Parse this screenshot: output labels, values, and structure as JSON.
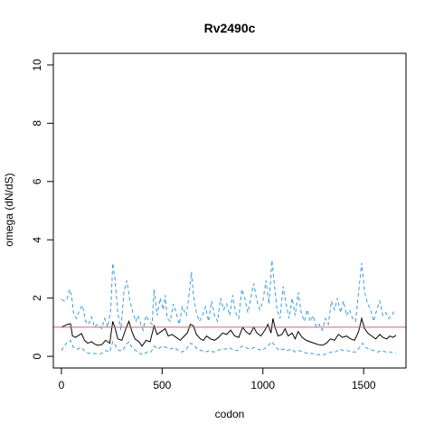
{
  "chart_data": {
    "type": "line",
    "title": "Rv2490c",
    "xlabel": "codon",
    "ylabel": "omega (dN/dS)",
    "xlim": [
      -40,
      1710
    ],
    "ylim": [
      -0.4,
      10.4
    ],
    "x_ticks": [
      0,
      500,
      1000,
      1500
    ],
    "y_ticks": [
      0,
      2,
      4,
      6,
      8,
      10
    ],
    "grid": false,
    "reference_line": {
      "y": 1,
      "color": "#d4607a"
    },
    "series": [
      {
        "role": "upper",
        "color": "#3a9bd9",
        "dash": "dashed",
        "points": [
          [
            0,
            1.95
          ],
          [
            15,
            1.9
          ],
          [
            30,
            2.0
          ],
          [
            40,
            2.3
          ],
          [
            50,
            2.1
          ],
          [
            60,
            1.5
          ],
          [
            75,
            1.3
          ],
          [
            90,
            1.6
          ],
          [
            105,
            1.75
          ],
          [
            120,
            1.2
          ],
          [
            135,
            1.1
          ],
          [
            150,
            1.35
          ],
          [
            165,
            1.0
          ],
          [
            180,
            1.1
          ],
          [
            200,
            0.95
          ],
          [
            215,
            1.3
          ],
          [
            230,
            1.0
          ],
          [
            245,
            1.6
          ],
          [
            255,
            3.2
          ],
          [
            265,
            2.7
          ],
          [
            280,
            1.5
          ],
          [
            295,
            0.9
          ],
          [
            310,
            2.2
          ],
          [
            325,
            2.6
          ],
          [
            340,
            1.9
          ],
          [
            355,
            1.5
          ],
          [
            370,
            1.2
          ],
          [
            380,
            1.4
          ],
          [
            395,
            1.1
          ],
          [
            405,
            0.9
          ],
          [
            420,
            1.4
          ],
          [
            435,
            1.2
          ],
          [
            450,
            1.1
          ],
          [
            460,
            2.3
          ],
          [
            475,
            1.4
          ],
          [
            490,
            2.0
          ],
          [
            505,
            1.6
          ],
          [
            515,
            2.1
          ],
          [
            525,
            1.3
          ],
          [
            540,
            1.2
          ],
          [
            555,
            1.8
          ],
          [
            570,
            1.5
          ],
          [
            585,
            1.1
          ],
          [
            600,
            1.7
          ],
          [
            620,
            1.4
          ],
          [
            635,
            2.2
          ],
          [
            645,
            2.9
          ],
          [
            655,
            2.1
          ],
          [
            670,
            1.5
          ],
          [
            685,
            1.2
          ],
          [
            700,
            1.4
          ],
          [
            715,
            1.7
          ],
          [
            730,
            1.2
          ],
          [
            745,
            1.9
          ],
          [
            760,
            1.4
          ],
          [
            775,
            1.2
          ],
          [
            790,
            2.0
          ],
          [
            805,
            1.6
          ],
          [
            820,
            1.8
          ],
          [
            835,
            1.4
          ],
          [
            850,
            2.1
          ],
          [
            865,
            1.5
          ],
          [
            880,
            1.3
          ],
          [
            895,
            2.3
          ],
          [
            910,
            2.0
          ],
          [
            925,
            1.5
          ],
          [
            940,
            2.0
          ],
          [
            955,
            2.5
          ],
          [
            970,
            1.9
          ],
          [
            985,
            1.6
          ],
          [
            1000,
            1.9
          ],
          [
            1015,
            2.6
          ],
          [
            1030,
            1.8
          ],
          [
            1045,
            3.3
          ],
          [
            1055,
            2.6
          ],
          [
            1070,
            1.6
          ],
          [
            1085,
            1.3
          ],
          [
            1100,
            2.4
          ],
          [
            1115,
            1.8
          ],
          [
            1130,
            1.3
          ],
          [
            1145,
            2.0
          ],
          [
            1160,
            1.4
          ],
          [
            1175,
            2.2
          ],
          [
            1190,
            1.5
          ],
          [
            1205,
            1.2
          ],
          [
            1220,
            1.6
          ],
          [
            1235,
            1.2
          ],
          [
            1250,
            1.4
          ],
          [
            1265,
            1.0
          ],
          [
            1280,
            1.1
          ],
          [
            1295,
            0.9
          ],
          [
            1310,
            1.3
          ],
          [
            1325,
            1.1
          ],
          [
            1340,
            1.9
          ],
          [
            1355,
            1.6
          ],
          [
            1370,
            2.0
          ],
          [
            1385,
            1.5
          ],
          [
            1400,
            1.9
          ],
          [
            1415,
            1.4
          ],
          [
            1430,
            1.6
          ],
          [
            1445,
            1.3
          ],
          [
            1460,
            1.2
          ],
          [
            1475,
            2.2
          ],
          [
            1490,
            3.2
          ],
          [
            1505,
            2.2
          ],
          [
            1520,
            1.8
          ],
          [
            1535,
            1.6
          ],
          [
            1550,
            1.2
          ],
          [
            1565,
            1.6
          ],
          [
            1580,
            1.9
          ],
          [
            1595,
            1.4
          ],
          [
            1610,
            1.5
          ],
          [
            1625,
            1.3
          ],
          [
            1640,
            1.4
          ],
          [
            1655,
            1.6
          ]
        ]
      },
      {
        "role": "median",
        "color": "#000000",
        "dash": "solid",
        "points": [
          [
            0,
            1.0
          ],
          [
            15,
            1.05
          ],
          [
            30,
            1.1
          ],
          [
            45,
            1.12
          ],
          [
            55,
            0.7
          ],
          [
            70,
            0.65
          ],
          [
            85,
            0.72
          ],
          [
            100,
            0.78
          ],
          [
            115,
            0.55
          ],
          [
            130,
            0.45
          ],
          [
            150,
            0.5
          ],
          [
            165,
            0.42
          ],
          [
            180,
            0.38
          ],
          [
            200,
            0.4
          ],
          [
            220,
            0.55
          ],
          [
            240,
            0.45
          ],
          [
            255,
            1.2
          ],
          [
            265,
            1.0
          ],
          [
            280,
            0.6
          ],
          [
            300,
            0.55
          ],
          [
            320,
            0.95
          ],
          [
            335,
            1.2
          ],
          [
            350,
            0.85
          ],
          [
            365,
            0.6
          ],
          [
            385,
            0.5
          ],
          [
            400,
            0.35
          ],
          [
            420,
            0.55
          ],
          [
            440,
            0.5
          ],
          [
            460,
            1.05
          ],
          [
            475,
            0.75
          ],
          [
            495,
            0.85
          ],
          [
            515,
            0.95
          ],
          [
            530,
            0.7
          ],
          [
            550,
            0.75
          ],
          [
            570,
            0.65
          ],
          [
            590,
            0.55
          ],
          [
            610,
            0.7
          ],
          [
            625,
            0.8
          ],
          [
            640,
            1.1
          ],
          [
            655,
            1.05
          ],
          [
            670,
            0.75
          ],
          [
            690,
            0.6
          ],
          [
            705,
            0.55
          ],
          [
            720,
            0.7
          ],
          [
            740,
            0.6
          ],
          [
            760,
            0.55
          ],
          [
            780,
            0.65
          ],
          [
            800,
            0.8
          ],
          [
            820,
            0.75
          ],
          [
            840,
            0.9
          ],
          [
            860,
            0.7
          ],
          [
            880,
            0.65
          ],
          [
            900,
            1.0
          ],
          [
            915,
            0.85
          ],
          [
            935,
            0.75
          ],
          [
            955,
            1.0
          ],
          [
            970,
            0.8
          ],
          [
            990,
            0.7
          ],
          [
            1010,
            0.9
          ],
          [
            1025,
            1.1
          ],
          [
            1040,
            0.8
          ],
          [
            1050,
            1.3
          ],
          [
            1060,
            1.0
          ],
          [
            1075,
            0.7
          ],
          [
            1095,
            0.75
          ],
          [
            1110,
            0.95
          ],
          [
            1125,
            0.7
          ],
          [
            1145,
            0.8
          ],
          [
            1160,
            0.6
          ],
          [
            1175,
            0.85
          ],
          [
            1195,
            0.65
          ],
          [
            1215,
            0.55
          ],
          [
            1235,
            0.5
          ],
          [
            1255,
            0.45
          ],
          [
            1275,
            0.4
          ],
          [
            1295,
            0.38
          ],
          [
            1315,
            0.45
          ],
          [
            1335,
            0.6
          ],
          [
            1355,
            0.55
          ],
          [
            1375,
            0.75
          ],
          [
            1395,
            0.65
          ],
          [
            1415,
            0.7
          ],
          [
            1435,
            0.6
          ],
          [
            1455,
            0.55
          ],
          [
            1475,
            0.85
          ],
          [
            1490,
            1.3
          ],
          [
            1505,
            0.95
          ],
          [
            1520,
            0.8
          ],
          [
            1540,
            0.7
          ],
          [
            1560,
            0.6
          ],
          [
            1580,
            0.75
          ],
          [
            1595,
            0.65
          ],
          [
            1615,
            0.6
          ],
          [
            1630,
            0.7
          ],
          [
            1645,
            0.65
          ],
          [
            1660,
            0.72
          ]
        ]
      },
      {
        "role": "lower",
        "color": "#3a9bd9",
        "dash": "dashed",
        "points": [
          [
            0,
            0.2
          ],
          [
            15,
            0.35
          ],
          [
            30,
            0.5
          ],
          [
            45,
            0.55
          ],
          [
            60,
            0.3
          ],
          [
            80,
            0.25
          ],
          [
            100,
            0.3
          ],
          [
            120,
            0.15
          ],
          [
            140,
            0.1
          ],
          [
            160,
            0.1
          ],
          [
            180,
            0.08
          ],
          [
            200,
            0.1
          ],
          [
            220,
            0.2
          ],
          [
            240,
            0.15
          ],
          [
            255,
            0.5
          ],
          [
            265,
            0.4
          ],
          [
            285,
            0.2
          ],
          [
            305,
            0.2
          ],
          [
            320,
            0.4
          ],
          [
            335,
            0.5
          ],
          [
            350,
            0.3
          ],
          [
            370,
            0.2
          ],
          [
            390,
            0.1
          ],
          [
            405,
            0.05
          ],
          [
            425,
            0.15
          ],
          [
            445,
            0.15
          ],
          [
            460,
            0.35
          ],
          [
            480,
            0.25
          ],
          [
            500,
            0.35
          ],
          [
            520,
            0.3
          ],
          [
            540,
            0.25
          ],
          [
            560,
            0.3
          ],
          [
            580,
            0.2
          ],
          [
            600,
            0.15
          ],
          [
            620,
            0.25
          ],
          [
            640,
            0.45
          ],
          [
            655,
            0.4
          ],
          [
            675,
            0.25
          ],
          [
            695,
            0.2
          ],
          [
            715,
            0.15
          ],
          [
            735,
            0.2
          ],
          [
            755,
            0.15
          ],
          [
            775,
            0.2
          ],
          [
            795,
            0.25
          ],
          [
            815,
            0.25
          ],
          [
            835,
            0.3
          ],
          [
            855,
            0.2
          ],
          [
            875,
            0.2
          ],
          [
            895,
            0.35
          ],
          [
            915,
            0.3
          ],
          [
            935,
            0.25
          ],
          [
            955,
            0.3
          ],
          [
            975,
            0.25
          ],
          [
            995,
            0.2
          ],
          [
            1015,
            0.3
          ],
          [
            1030,
            0.4
          ],
          [
            1045,
            0.5
          ],
          [
            1060,
            0.35
          ],
          [
            1080,
            0.2
          ],
          [
            1100,
            0.25
          ],
          [
            1120,
            0.2
          ],
          [
            1140,
            0.25
          ],
          [
            1160,
            0.15
          ],
          [
            1180,
            0.2
          ],
          [
            1200,
            0.15
          ],
          [
            1220,
            0.1
          ],
          [
            1240,
            0.1
          ],
          [
            1260,
            0.08
          ],
          [
            1280,
            0.05
          ],
          [
            1300,
            0.05
          ],
          [
            1320,
            0.1
          ],
          [
            1340,
            0.15
          ],
          [
            1360,
            0.15
          ],
          [
            1380,
            0.25
          ],
          [
            1400,
            0.2
          ],
          [
            1420,
            0.2
          ],
          [
            1440,
            0.15
          ],
          [
            1460,
            0.15
          ],
          [
            1480,
            0.3
          ],
          [
            1495,
            0.45
          ],
          [
            1510,
            0.3
          ],
          [
            1530,
            0.25
          ],
          [
            1550,
            0.2
          ],
          [
            1570,
            0.15
          ],
          [
            1590,
            0.2
          ],
          [
            1610,
            0.15
          ],
          [
            1630,
            0.15
          ],
          [
            1650,
            0.12
          ],
          [
            1660,
            0.1
          ]
        ]
      }
    ]
  }
}
